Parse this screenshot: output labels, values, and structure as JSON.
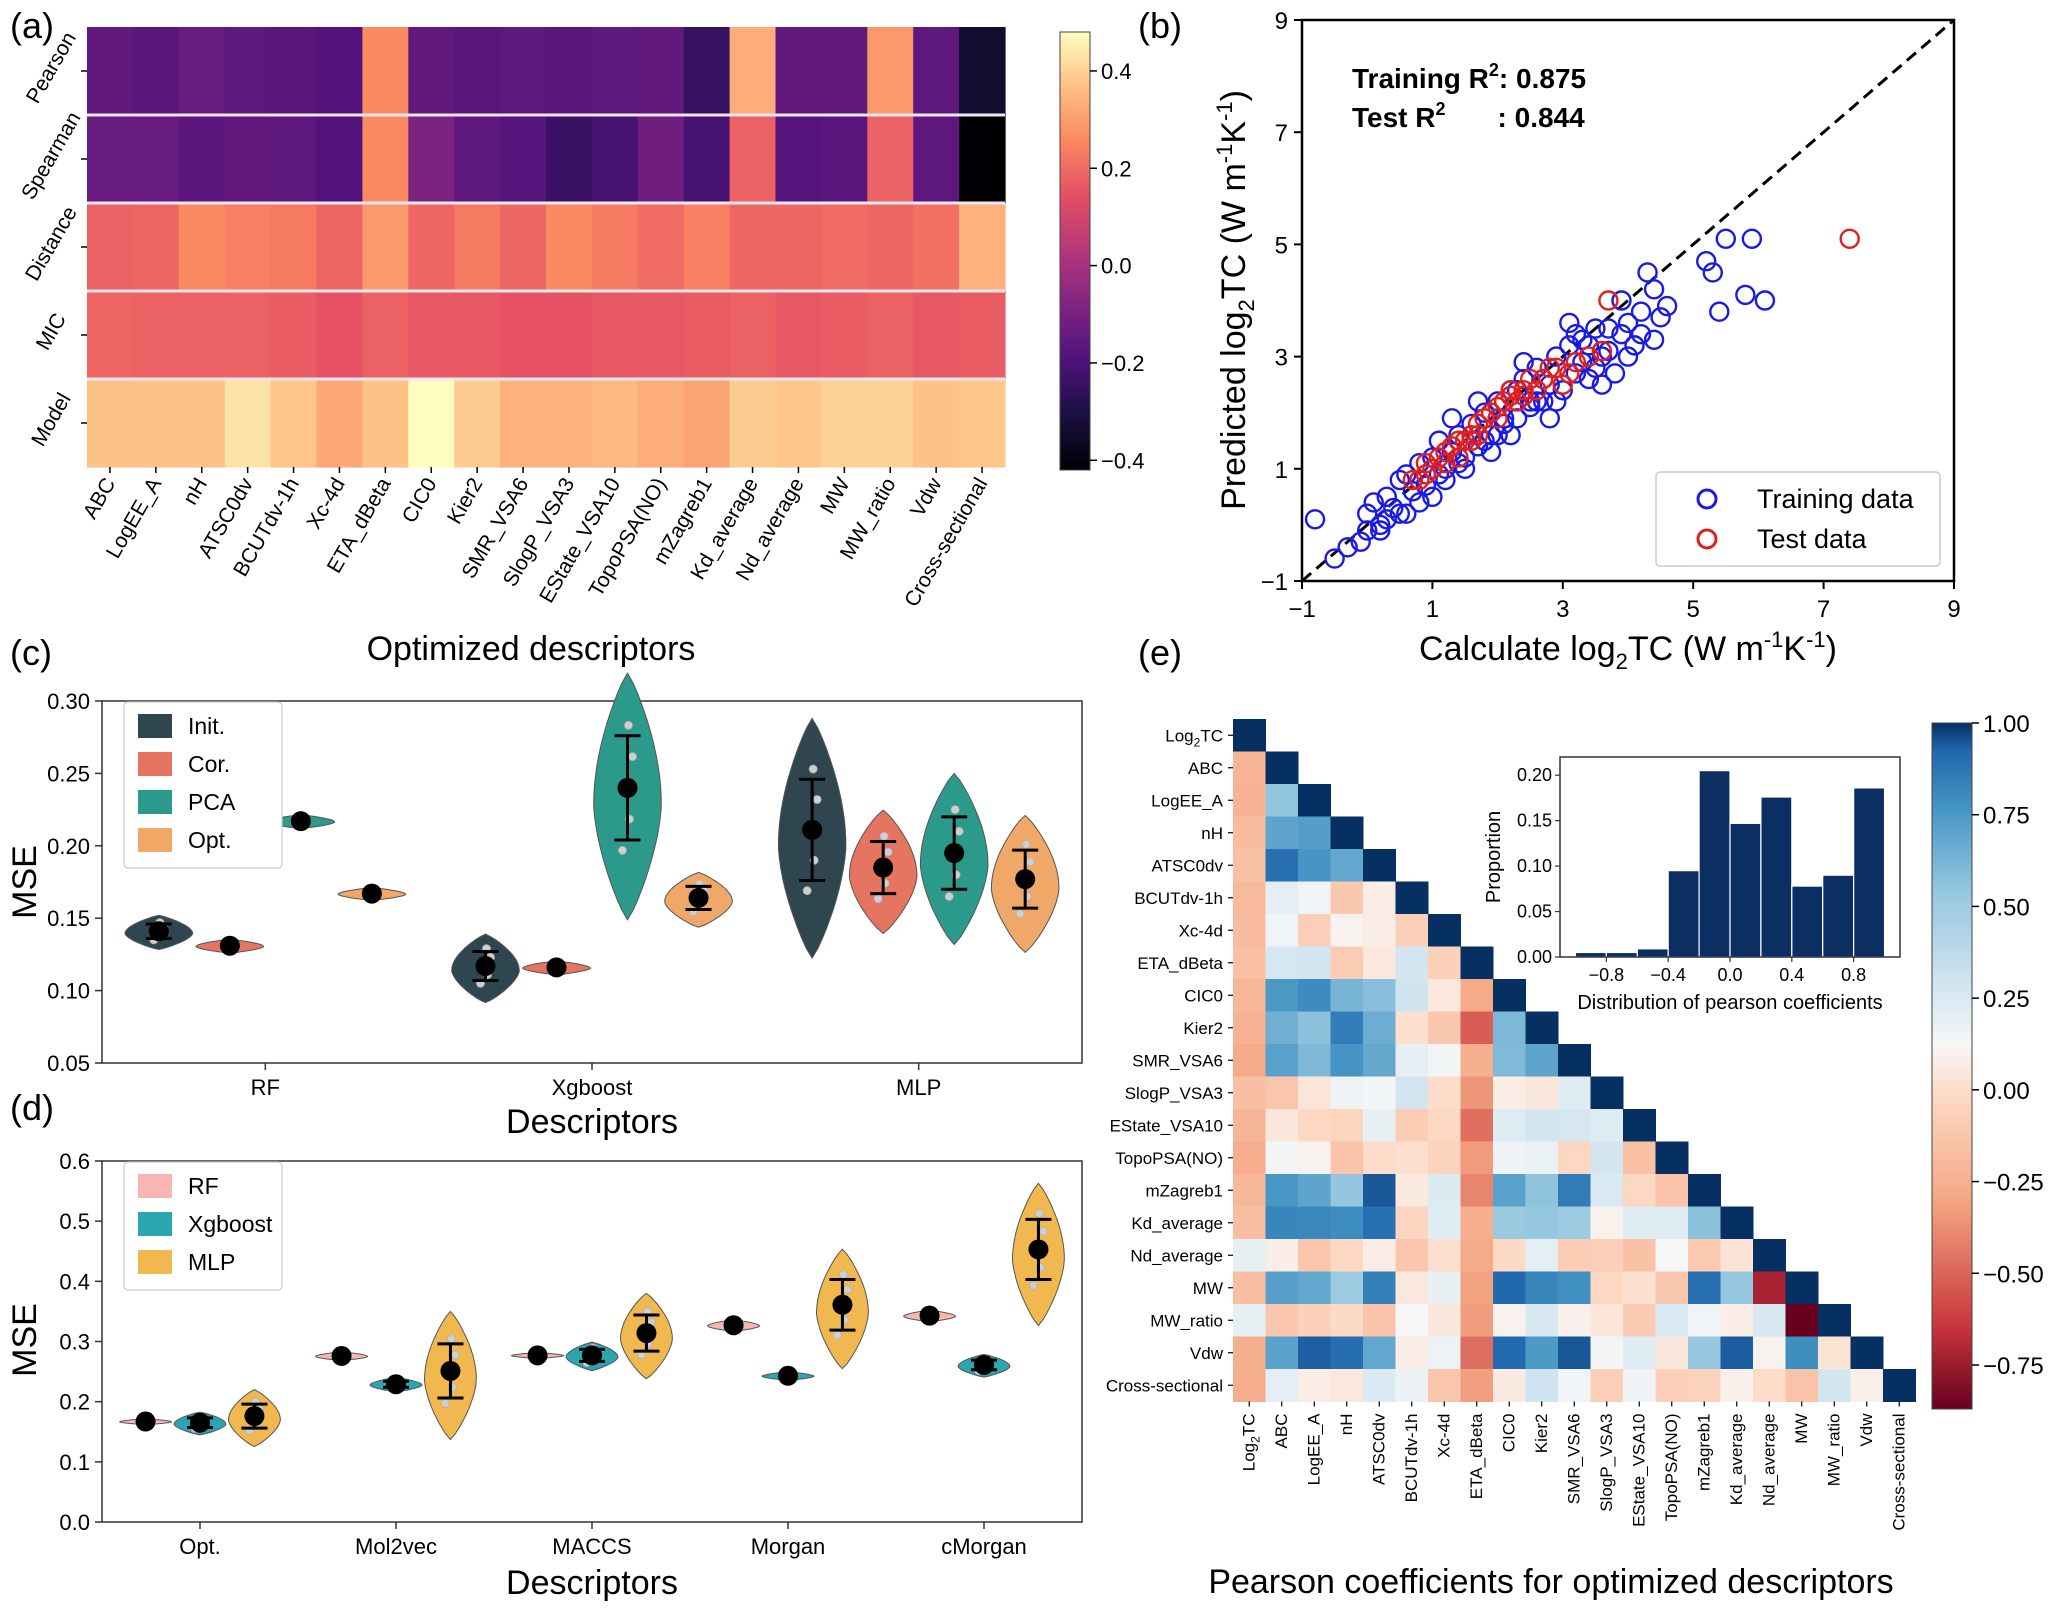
{
  "chart_data": [
    {
      "panel": "(a)",
      "type": "heatmap",
      "xlabel": "Optimized descriptors",
      "rows": [
        "Pearson",
        "Spearman",
        "Distance",
        "MIC",
        "Model"
      ],
      "columns": [
        "ABC",
        "LogEE_A",
        "nH",
        "ATSC0dv",
        "BCUTdv-1h",
        "Xc-4d",
        "ETA_dBeta",
        "CIC0",
        "Kier2",
        "SMR_VSA6",
        "SlogP_VSA3",
        "EState_VSA10",
        "TopoPSA(NO)",
        "mZagreb1",
        "Kd_average",
        "Nd_average",
        "MW",
        "MW_ratio",
        "Vdw",
        "Cross-sectional"
      ],
      "values": [
        [
          -0.15,
          -0.17,
          -0.14,
          -0.16,
          -0.17,
          -0.19,
          0.26,
          -0.15,
          -0.17,
          -0.16,
          -0.17,
          -0.16,
          -0.15,
          -0.25,
          0.33,
          -0.15,
          -0.15,
          0.29,
          -0.16,
          -0.34
        ],
        [
          -0.14,
          -0.14,
          -0.17,
          -0.15,
          -0.16,
          -0.19,
          0.26,
          -0.09,
          -0.16,
          -0.18,
          -0.24,
          -0.21,
          -0.12,
          -0.21,
          0.18,
          -0.18,
          -0.17,
          0.18,
          -0.16,
          -0.42
        ],
        [
          0.18,
          0.19,
          0.26,
          0.24,
          0.23,
          0.19,
          0.29,
          0.19,
          0.23,
          0.19,
          0.26,
          0.23,
          0.2,
          0.24,
          0.19,
          0.19,
          0.2,
          0.19,
          0.21,
          0.34
        ],
        [
          0.19,
          0.18,
          0.18,
          0.18,
          0.17,
          0.15,
          0.18,
          0.16,
          0.16,
          0.15,
          0.15,
          0.16,
          0.16,
          0.17,
          0.18,
          0.16,
          0.17,
          0.18,
          0.16,
          0.17
        ],
        [
          0.37,
          0.37,
          0.37,
          0.43,
          0.38,
          0.32,
          0.37,
          0.48,
          0.39,
          0.34,
          0.34,
          0.35,
          0.33,
          0.31,
          0.39,
          0.38,
          0.4,
          0.4,
          0.37,
          0.38
        ]
      ],
      "colorbar": {
        "ticks": [
          "0.4",
          "0.2",
          "0.0",
          "−0.2",
          "−0.4"
        ],
        "vmin": -0.42,
        "vmax": 0.48
      }
    },
    {
      "panel": "(b)",
      "type": "scatter",
      "xlabel": "Calculate log",
      "xlabel_sub": "2",
      "xlabel_tail": "TC (W m",
      "ylabel": "Predicted log",
      "units": {
        "a": "-1",
        "b": "K",
        "c": "-1",
        "d": ")"
      },
      "xlim": [
        -1,
        9
      ],
      "ylim": [
        -1,
        9
      ],
      "xticks": [
        "−1",
        "1",
        "3",
        "5",
        "7",
        "9"
      ],
      "yticks": [
        "−1",
        "1",
        "3",
        "5",
        "7",
        "9"
      ],
      "annotations": {
        "train_label": "Training R",
        "train_value": ": 0.875",
        "test_label": "Test R",
        "test_value": ": 0.844",
        "sup": "2"
      },
      "legend": [
        "Training data",
        "Test data"
      ],
      "training": [
        [
          -0.5,
          -0.6
        ],
        [
          -0.3,
          -0.4
        ],
        [
          -0.1,
          -0.3
        ],
        [
          0,
          0.2
        ],
        [
          0.1,
          0.4
        ],
        [
          0.2,
          0
        ],
        [
          0.3,
          0.5
        ],
        [
          0.4,
          0.3
        ],
        [
          0.5,
          0.8
        ],
        [
          0.6,
          0.9
        ],
        [
          0.7,
          0.6
        ],
        [
          0.8,
          1.1
        ],
        [
          0.9,
          0.7
        ],
        [
          1,
          1.2
        ],
        [
          1.1,
          1.5
        ],
        [
          1.2,
          1
        ],
        [
          1.3,
          1.3
        ],
        [
          1.4,
          1.6
        ],
        [
          1.5,
          1.2
        ],
        [
          1.6,
          1.8
        ],
        [
          1.7,
          1.4
        ],
        [
          1.8,
          2
        ],
        [
          1.9,
          1.6
        ],
        [
          2,
          2.2
        ],
        [
          2.1,
          1.8
        ],
        [
          2.2,
          2.4
        ],
        [
          2.3,
          1.9
        ],
        [
          2.4,
          2.6
        ],
        [
          2.5,
          2.1
        ],
        [
          2.6,
          2.8
        ],
        [
          2.7,
          2.2
        ],
        [
          2.8,
          2.5
        ],
        [
          2.9,
          3
        ],
        [
          3,
          2.4
        ],
        [
          3.1,
          3.2
        ],
        [
          3.2,
          2.7
        ],
        [
          3.3,
          3.3
        ],
        [
          3.4,
          2.6
        ],
        [
          3.5,
          3.5
        ],
        [
          3.6,
          3
        ],
        [
          3.7,
          3.1
        ],
        [
          3.8,
          2.7
        ],
        [
          3.9,
          3.4
        ],
        [
          4,
          3.6
        ],
        [
          4.1,
          3.2
        ],
        [
          4.2,
          3.8
        ],
        [
          4.3,
          4.5
        ],
        [
          4.4,
          3.3
        ],
        [
          4.5,
          3.7
        ],
        [
          5.2,
          4.7
        ],
        [
          5.3,
          4.5
        ],
        [
          5.4,
          3.8
        ],
        [
          5.5,
          5.1
        ],
        [
          5.8,
          4.1
        ],
        [
          5.9,
          5.1
        ],
        [
          6.1,
          4
        ],
        [
          0.2,
          -0.1
        ],
        [
          0.8,
          0.4
        ],
        [
          1.5,
          1
        ],
        [
          2.2,
          1.6
        ],
        [
          2.9,
          2.2
        ],
        [
          3.6,
          2.5
        ],
        [
          1.2,
          0.8
        ],
        [
          2.6,
          2.2
        ],
        [
          3.3,
          2.9
        ],
        [
          1.9,
          1.3
        ],
        [
          4,
          3
        ],
        [
          0.5,
          0.2
        ],
        [
          1.7,
          2.2
        ],
        [
          2.4,
          2.9
        ],
        [
          3.1,
          3.6
        ],
        [
          -0.8,
          0.1
        ],
        [
          0,
          -0.1
        ],
        [
          1.3,
          1.9
        ],
        [
          2.8,
          1.9
        ],
        [
          3.9,
          4
        ],
        [
          4.4,
          4.2
        ],
        [
          2,
          1.6
        ],
        [
          3.5,
          2.8
        ],
        [
          1,
          0.5
        ],
        [
          2.5,
          2.2
        ],
        [
          3.7,
          3.5
        ],
        [
          1.4,
          1.1
        ],
        [
          2.3,
          2.4
        ],
        [
          0.6,
          0.2
        ],
        [
          4.2,
          3.4
        ],
        [
          3.2,
          3.4
        ],
        [
          2.7,
          2.6
        ],
        [
          1.8,
          1.5
        ],
        [
          0.3,
          0.1
        ],
        [
          1.1,
          0.9
        ],
        [
          2.1,
          1.9
        ],
        [
          3.4,
          3.2
        ],
        [
          4.6,
          3.9
        ]
      ],
      "test": [
        [
          0.8,
          0.8
        ],
        [
          0.9,
          1.1
        ],
        [
          1,
          1
        ],
        [
          1.1,
          1.2
        ],
        [
          1.2,
          1.3
        ],
        [
          1.3,
          1.4
        ],
        [
          1.4,
          1.2
        ],
        [
          1.5,
          1.5
        ],
        [
          1.6,
          1.6
        ],
        [
          1.7,
          1.8
        ],
        [
          1.8,
          1.9
        ],
        [
          1.9,
          2
        ],
        [
          2,
          2.1
        ],
        [
          2.1,
          2.2
        ],
        [
          2.2,
          2.3
        ],
        [
          2.3,
          2.2
        ],
        [
          2.4,
          2.4
        ],
        [
          2.5,
          2.6
        ],
        [
          2.6,
          2.4
        ],
        [
          2.7,
          2.6
        ],
        [
          2.8,
          2.8
        ],
        [
          3,
          2.5
        ],
        [
          3.2,
          2.9
        ],
        [
          3.4,
          3
        ],
        [
          3.6,
          3.1
        ],
        [
          3.7,
          4
        ],
        [
          7.4,
          5.1
        ],
        [
          0.9,
          0.9
        ],
        [
          1.2,
          1.1
        ],
        [
          1.6,
          1.5
        ],
        [
          2,
          1.9
        ],
        [
          2.4,
          2.3
        ],
        [
          2.2,
          2.4
        ],
        [
          1.4,
          1.5
        ],
        [
          0.7,
          0.8
        ],
        [
          1.7,
          1.6
        ],
        [
          3.1,
          2.7
        ],
        [
          2.9,
          2.8
        ]
      ]
    },
    {
      "panel": "(c)",
      "type": "violin",
      "xlabel": "Descriptors",
      "ylabel": "MSE",
      "ylim": [
        0.05,
        0.3
      ],
      "yticks": [
        "0.05",
        "0.10",
        "0.15",
        "0.20",
        "0.25",
        "0.30"
      ],
      "categories": [
        "RF",
        "Xgboost",
        "MLP"
      ],
      "legend": [
        "Init.",
        "Cor.",
        "PCA",
        "Opt."
      ],
      "colors": [
        "#2f4550",
        "#e57561",
        "#2c9a8a",
        "#efa868"
      ],
      "series": [
        {
          "name": "Init.",
          "values": [
            0.141,
            0.117,
            0.211
          ],
          "err": [
            0.005,
            0.01,
            0.035
          ]
        },
        {
          "name": "Cor.",
          "values": [
            0.131,
            0.116,
            0.185
          ],
          "err": [
            0.002,
            0.002,
            0.018
          ]
        },
        {
          "name": "PCA",
          "values": [
            0.217,
            0.24,
            0.195
          ],
          "err": [
            0.002,
            0.036,
            0.025
          ]
        },
        {
          "name": "Opt.",
          "values": [
            0.167,
            0.164,
            0.177
          ],
          "err": [
            0.001,
            0.008,
            0.02
          ]
        }
      ]
    },
    {
      "panel": "(d)",
      "type": "violin",
      "xlabel": "Descriptors",
      "ylabel": "MSE",
      "ylim": [
        0,
        0.6
      ],
      "yticks": [
        "0.0",
        "0.1",
        "0.2",
        "0.3",
        "0.4",
        "0.5",
        "0.6"
      ],
      "categories": [
        "Opt.",
        "Mol2vec",
        "MACCS",
        "Morgan",
        "cMorgan"
      ],
      "legend": [
        "RF",
        "Xgboost",
        "MLP"
      ],
      "colors": [
        "#f7b6b4",
        "#2ba5b0",
        "#f0b84e"
      ],
      "series": [
        {
          "name": "RF",
          "values": [
            0.167,
            0.276,
            0.277,
            0.327,
            0.343
          ],
          "err": [
            0.002,
            0.003,
            0.002,
            0.004,
            0.004
          ]
        },
        {
          "name": "Xgboost",
          "values": [
            0.165,
            0.229,
            0.277,
            0.243,
            0.261
          ],
          "err": [
            0.008,
            0.005,
            0.01,
            0.003,
            0.008
          ]
        },
        {
          "name": "MLP",
          "values": [
            0.176,
            0.251,
            0.314,
            0.361,
            0.453
          ],
          "err": [
            0.02,
            0.045,
            0.03,
            0.042,
            0.05
          ]
        }
      ]
    },
    {
      "panel": "(e)",
      "type": "heatmap",
      "title": "Pearson coefficients for optimized descriptors",
      "labels": [
        "Log",
        "ABC",
        "LogEE_A",
        "nH",
        "ATSC0dv",
        "BCUTdv-1h",
        "Xc-4d",
        "ETA_dBeta",
        "CIC0",
        "Kier2",
        "SMR_VSA6",
        "SlogP_VSA3",
        "EState_VSA10",
        "TopoPSA(NO)",
        "mZagreb1",
        "Kd_average",
        "Nd_average",
        "MW",
        "MW_ratio",
        "Vdw",
        "Cross-sectional"
      ],
      "label_sub": "2",
      "label_tail": "TC",
      "colorbar": {
        "ticks": [
          "1.00",
          "0.75",
          "0.50",
          "0.25",
          "0.00",
          "−0.25",
          "−0.50",
          "−0.75"
        ],
        "vmin": -0.87,
        "vmax": 1.0
      },
      "inset": {
        "type": "bar",
        "xlabel": "Distribution of pearson coefficients",
        "ylabel": "Proportion",
        "xticks": [
          "−0.8",
          "−0.4",
          "0.0",
          "0.4",
          "0.8"
        ],
        "yticks": [
          "0.00",
          "0.05",
          "0.10",
          "0.15",
          "0.20"
        ],
        "ylim": [
          0,
          0.22
        ],
        "bins": [
          -1.0,
          -0.8,
          -0.6,
          -0.4,
          -0.2,
          0.0,
          0.2,
          0.4,
          0.6,
          0.8,
          1.0
        ],
        "values": [
          0.005,
          0.005,
          0.009,
          0.095,
          0.205,
          0.147,
          0.176,
          0.078,
          0.09,
          0.186
        ]
      }
    }
  ],
  "panel_labels": [
    "(a)",
    "(b)",
    "(c)",
    "(d)",
    "(e)"
  ]
}
